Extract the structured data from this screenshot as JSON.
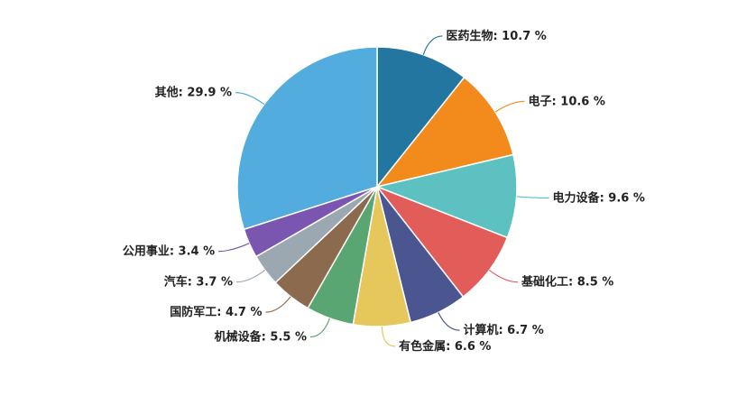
{
  "chart_data": {
    "type": "pie",
    "categories": [
      "医药生物",
      "电子",
      "电力设备",
      "基础化工",
      "计算机",
      "有色金属",
      "机械设备",
      "国防军工",
      "汽车",
      "公用事业",
      "其他"
    ],
    "values": [
      10.7,
      10.6,
      9.6,
      8.5,
      6.7,
      6.6,
      5.5,
      4.7,
      3.7,
      3.4,
      29.9
    ],
    "value_labels": [
      ": 10.7 %",
      ": 10.6 %",
      ": 9.6 %",
      ": 8.5 %",
      ": 6.7 %",
      ": 6.6 %",
      ": 5.5 %",
      ": 4.7 %",
      ": 3.7 %",
      ": 3.4 %",
      ": 29.9 %"
    ],
    "colors": [
      "#22769f",
      "#f38a1c",
      "#5dc0c1",
      "#e25c5a",
      "#4b5690",
      "#e6c75c",
      "#5aa673",
      "#8c6a4e",
      "#9ba8b2",
      "#7a56b1",
      "#52acdd"
    ]
  }
}
